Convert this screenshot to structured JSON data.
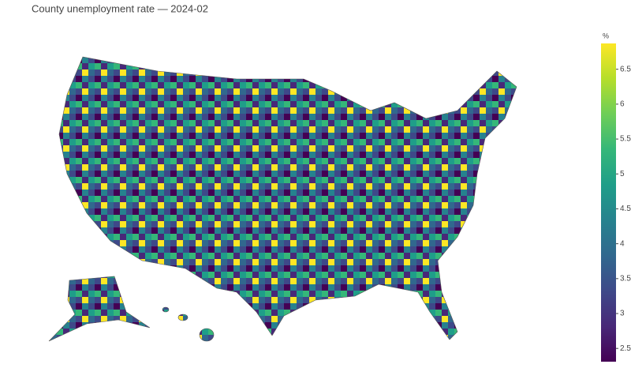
{
  "chart_data": {
    "type": "choropleth",
    "title": "County unemployment rate — 2024-02",
    "colorbar": {
      "title": "%",
      "zlim": [
        2.31,
        6.87
      ],
      "ticks": [
        2.5,
        3,
        3.5,
        4,
        4.5,
        5,
        5.5,
        6,
        6.5
      ],
      "colorscale": [
        "#440154",
        "#482878",
        "#3e4989",
        "#31688e",
        "#26828e",
        "#1f9e89",
        "#35b779",
        "#6ece58",
        "#b5de2b",
        "#fde725"
      ]
    }
  }
}
